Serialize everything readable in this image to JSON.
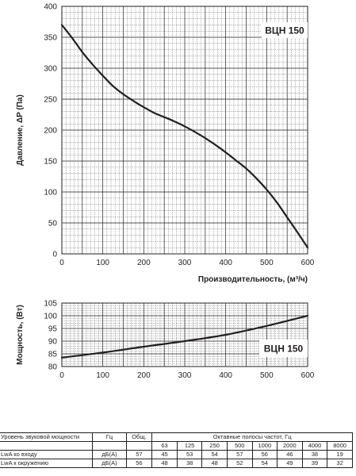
{
  "chart_data": [
    {
      "type": "line",
      "title": "",
      "badge": "ВЦН 150",
      "xlabel": "Производительность, (м³/ч)",
      "ylabel": "Давление, ΔP (Па)",
      "xlim": [
        0,
        600
      ],
      "ylim": [
        0,
        400
      ],
      "xticks": [
        0,
        100,
        200,
        300,
        400,
        500,
        600
      ],
      "yticks": [
        0,
        50,
        100,
        150,
        200,
        250,
        300,
        350,
        400
      ],
      "grid": true,
      "series": [
        {
          "x": [
            0,
            25,
            50,
            75,
            100,
            125,
            150,
            175,
            200,
            225,
            250,
            275,
            300,
            325,
            350,
            375,
            400,
            425,
            450,
            475,
            500,
            525,
            550,
            575,
            600
          ],
          "y": [
            370,
            349,
            326,
            306,
            288,
            271,
            258,
            247,
            237,
            228,
            221,
            214,
            206,
            197,
            187,
            176,
            164,
            151,
            138,
            122,
            104,
            83,
            59,
            35,
            10
          ]
        }
      ]
    },
    {
      "type": "line",
      "title": "",
      "badge": "ВЦН 150",
      "xlabel": "",
      "ylabel": "Мощность, (Вт)",
      "xlim": [
        0,
        600
      ],
      "ylim": [
        80,
        105
      ],
      "xticks": [
        0,
        100,
        200,
        300,
        400,
        500,
        600
      ],
      "yticks": [
        80,
        85,
        90,
        95,
        100,
        105
      ],
      "grid": true,
      "series": [
        {
          "x": [
            0,
            100,
            200,
            300,
            400,
            500,
            600
          ],
          "y": [
            83.5,
            85.5,
            87.8,
            90,
            92.5,
            96,
            100
          ]
        }
      ]
    }
  ],
  "sound_table": {
    "row_header": {
      "label": "Уровень звуковой мощности",
      "unit": "Гц",
      "total": "Общ.",
      "bands_title": "Октавные полосы частот, Гц",
      "bands": [
        "63",
        "125",
        "250",
        "500",
        "1000",
        "2000",
        "4000",
        "8000"
      ]
    },
    "rows": [
      {
        "label": "LwA ко входу",
        "unit": "дБ(А)",
        "total": "57",
        "values": [
          "45",
          "53",
          "54",
          "57",
          "56",
          "46",
          "38",
          "19"
        ]
      },
      {
        "label": "LwA к окружению",
        "unit": "дБ(А)",
        "total": "56",
        "values": [
          "48",
          "38",
          "48",
          "52",
          "54",
          "49",
          "39",
          "32"
        ]
      }
    ]
  }
}
